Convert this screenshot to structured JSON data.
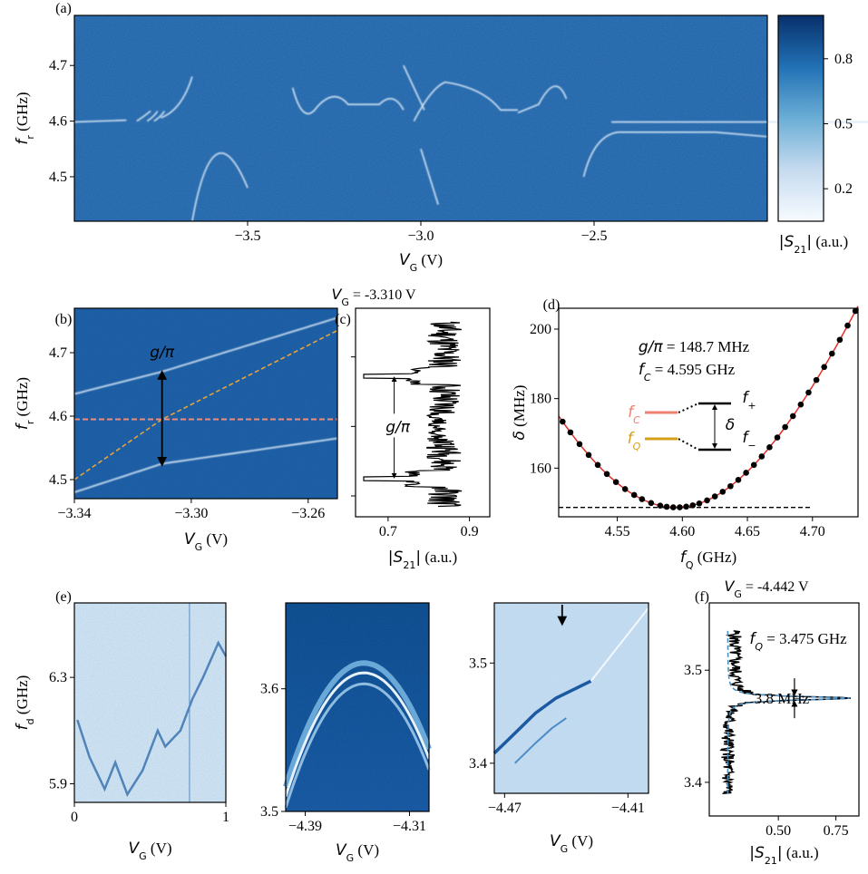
{
  "figure": {
    "panel_labels": [
      "(a)",
      "(b)",
      "(c)",
      "(d)",
      "(e)",
      "(f)"
    ],
    "colors": {
      "map_dark": "#08306b",
      "map_mid": "#1f64ab",
      "map_light": "#deebf7",
      "dashed_orange": "#e8a33a",
      "dashed_salmon": "#f28a7a",
      "fit_red": "#e0302c",
      "dashed_blue": "#4a90c4",
      "fc_color": "#f08070",
      "fq_color": "#d4a017"
    }
  },
  "chart_data": [
    {
      "id": "a",
      "type": "heatmap",
      "xlabel": "V_G (V)",
      "ylabel": "f_r (GHz)",
      "xlim": [
        -4.0,
        -2.0
      ],
      "ylim": [
        4.42,
        4.79
      ],
      "x_ticks": [
        -3.5,
        -3.0,
        -2.5
      ],
      "x_tick_labels": [
        "−3.5",
        "−3.0",
        "−2.5"
      ],
      "y_ticks": [
        4.5,
        4.6,
        4.7
      ],
      "y_tick_labels": [
        "4.5",
        "4.6",
        "4.7"
      ],
      "colorbar": {
        "label": "|S21| (a.u.)",
        "range": [
          0.05,
          1.0
        ],
        "ticks": [
          0.2,
          0.5,
          0.8
        ],
        "tick_labels": [
          "0.2",
          "0.5",
          "0.8"
        ]
      }
    },
    {
      "id": "b",
      "type": "heatmap",
      "xlabel": "V_G (V)",
      "ylabel": "f_r (GHz)",
      "xlim": [
        -3.34,
        -3.25
      ],
      "ylim": [
        4.47,
        4.77
      ],
      "x_ticks": [
        -3.34,
        -3.3,
        -3.26
      ],
      "x_tick_labels": [
        "−3.34",
        "−3.30",
        "−3.26"
      ],
      "y_ticks": [
        4.5,
        4.6,
        4.7
      ],
      "y_tick_labels": [
        "4.5",
        "4.6",
        "4.7"
      ],
      "resonator_line_ghz": 4.595,
      "qubit_dashed_line": {
        "x": [
          -3.34,
          -3.31,
          -3.25
        ],
        "y": [
          4.5,
          4.595,
          4.735
        ]
      },
      "upper_branch": {
        "x": [
          -3.34,
          -3.31,
          -3.25
        ],
        "y": [
          4.635,
          4.67,
          4.755
        ]
      },
      "lower_branch": {
        "x": [
          -3.34,
          -3.31,
          -3.25
        ],
        "y": [
          4.48,
          4.525,
          4.565
        ]
      },
      "annotation": "g/π"
    },
    {
      "id": "c",
      "type": "line",
      "title": "V_G = -3.310 V",
      "xlabel": "|S21| (a.u.)",
      "xlim": [
        0.62,
        0.95
      ],
      "ylim": [
        4.47,
        4.77
      ],
      "x_ticks": [
        0.7,
        0.9
      ],
      "x_tick_labels": [
        "0.7",
        "0.9"
      ],
      "dips_ghz": [
        4.672,
        4.525
      ],
      "annotation": "g/π"
    },
    {
      "id": "d",
      "type": "scatter",
      "xlabel": "f_Q (GHz)",
      "ylabel": "δ (MHz)",
      "xlim": [
        4.505,
        4.735
      ],
      "ylim": [
        146,
        206
      ],
      "x_ticks": [
        4.55,
        4.6,
        4.65,
        4.7
      ],
      "x_tick_labels": [
        "4.55",
        "4.60",
        "4.65",
        "4.70"
      ],
      "y_ticks": [
        160,
        180,
        200
      ],
      "y_tick_labels": [
        "160",
        "180",
        "200"
      ],
      "x": [
        4.508,
        4.514,
        4.521,
        4.528,
        4.535,
        4.542,
        4.549,
        4.556,
        4.563,
        4.569,
        4.576,
        4.583,
        4.588,
        4.593,
        4.598,
        4.603,
        4.608,
        4.613,
        4.619,
        4.625,
        4.631,
        4.637,
        4.643,
        4.649,
        4.655,
        4.661,
        4.667,
        4.673,
        4.679,
        4.685,
        4.691,
        4.697,
        4.703,
        4.709,
        4.715,
        4.721,
        4.727,
        4.733
      ],
      "fit": {
        "g_over_pi_mhz": 148.7,
        "f_c_ghz": 4.595
      },
      "baseline_mhz": 148.7,
      "annotations": [
        "g/π = 148.7 MHz",
        "f_C = 4.595 GHz"
      ],
      "diagram_labels": [
        "f_C",
        "f_Q",
        "f_+",
        "f_−",
        "δ"
      ]
    },
    {
      "id": "e1",
      "type": "heatmap",
      "xlabel": "V_G (V)",
      "ylabel": "f_d (GHz)",
      "xlim": [
        0.0,
        1.0
      ],
      "ylim": [
        5.83,
        6.58
      ],
      "x_ticks": [
        0,
        1
      ],
      "x_tick_labels": [
        "0",
        "1"
      ],
      "y_ticks": [
        5.9,
        6.3
      ],
      "y_tick_labels": [
        "5.9",
        "6.3"
      ]
    },
    {
      "id": "e2",
      "type": "heatmap",
      "xlabel": "V_G (V)",
      "xlim": [
        -4.405,
        -4.295
      ],
      "ylim": [
        3.5,
        3.67
      ],
      "x_ticks": [
        -4.39,
        -4.31
      ],
      "x_tick_labels": [
        "−4.39",
        "−4.31"
      ],
      "y_ticks": [
        3.5,
        3.6
      ],
      "y_tick_labels": [
        "3.5",
        "3.6"
      ]
    },
    {
      "id": "e3",
      "type": "heatmap",
      "xlabel": "V_G (V)",
      "xlim": [
        -4.475,
        -4.4
      ],
      "ylim": [
        3.37,
        3.56
      ],
      "x_ticks": [
        -4.47,
        -4.41
      ],
      "x_tick_labels": [
        "−4.47",
        "−4.41"
      ],
      "y_ticks": [
        3.4,
        3.5
      ],
      "y_tick_labels": [
        "3.4",
        "3.5"
      ],
      "arrow_at_v": -4.442
    },
    {
      "id": "f",
      "type": "line",
      "title": "V_G = -4.442 V",
      "xlabel": "|S21| (a.u.)",
      "xlim": [
        0.2,
        0.85
      ],
      "ylim": [
        3.37,
        3.56
      ],
      "x_ticks": [
        0.5,
        0.75
      ],
      "x_tick_labels": [
        "0.50",
        "0.75"
      ],
      "y_ticks": [
        3.4,
        3.5
      ],
      "y_tick_labels": [
        "3.4",
        "3.5"
      ],
      "peak_ghz": 3.475,
      "linewidth_mhz": 3.8,
      "annotations": [
        "f_Q = 3.475 GHz",
        "3.8 MHz"
      ]
    }
  ]
}
